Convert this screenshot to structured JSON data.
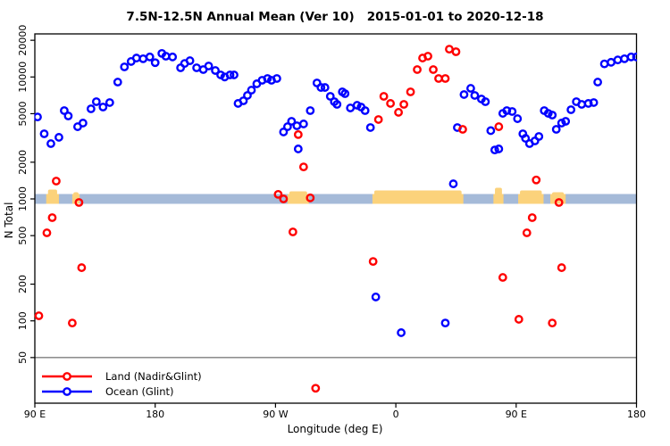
{
  "chart_data": {
    "type": "scatter",
    "title": "7.5N-12.5N Annual Mean (Ver 10)   2015-01-01 to 2020-12-18",
    "xlabel": "Longitude (deg E)",
    "ylabel": "N Total",
    "x_axis": {
      "range_axis_deg": [
        90,
        540
      ],
      "ticks_axis_deg": [
        90,
        180,
        270,
        360,
        450,
        540
      ],
      "tick_labels": [
        "90 E",
        "180",
        "90 W",
        "0",
        "90 E",
        "180"
      ]
    },
    "y_axis": {
      "scale": "log",
      "range": [
        21,
        22600
      ],
      "ticks": [
        50,
        100,
        200,
        500,
        1000,
        2000,
        5000,
        10000,
        20000
      ],
      "tick_labels": [
        "50",
        "100",
        "200",
        "500",
        "1000",
        "2000",
        "5000",
        "10000",
        "20000"
      ]
    },
    "reference_line": {
      "value": 50,
      "color": "#7E7E7E"
    },
    "land_ocean_strip": {
      "center_value": 1000,
      "ocean_color": "#A5BAD8",
      "land_color": "#FBD27B",
      "patches_axis_deg": [
        {
          "from": 98.5,
          "to": 108,
          "bump": 5
        },
        {
          "from": 118,
          "to": 123.5,
          "bump": 2
        },
        {
          "from": 279,
          "to": 295,
          "bump": 3
        },
        {
          "from": 342.5,
          "to": 410.5,
          "bump": 4
        },
        {
          "from": 433,
          "to": 440.5,
          "bump": 7
        },
        {
          "from": 451.5,
          "to": 470.5,
          "bump": 4
        },
        {
          "from": 475.5,
          "to": 487,
          "bump": 2
        }
      ]
    },
    "legend": {
      "position": "bottom-left"
    },
    "series": [
      {
        "name": "Land (Nadir&Glint)",
        "color": "#FF0000",
        "points": [
          [
            93,
            110
          ],
          [
            99,
            527
          ],
          [
            103,
            702
          ],
          [
            106,
            1400
          ],
          [
            118,
            96
          ],
          [
            123,
            935
          ],
          [
            125,
            273
          ],
          [
            272,
            1090
          ],
          [
            276,
            1000
          ],
          [
            283,
            536
          ],
          [
            287,
            3370
          ],
          [
            291,
            1830
          ],
          [
            296,
            1020
          ],
          [
            300,
            28
          ],
          [
            343,
            307
          ],
          [
            347,
            4480
          ],
          [
            351,
            6940
          ],
          [
            356,
            6070
          ],
          [
            362,
            5130
          ],
          [
            366,
            5960
          ],
          [
            371,
            7550
          ],
          [
            376,
            11500
          ],
          [
            380,
            14300
          ],
          [
            384,
            14800
          ],
          [
            388,
            11500
          ],
          [
            392,
            9720
          ],
          [
            397,
            9720
          ],
          [
            400,
            16900
          ],
          [
            405,
            16100
          ],
          [
            410,
            3720
          ],
          [
            437,
            3910
          ],
          [
            440,
            227
          ],
          [
            452,
            103
          ],
          [
            458,
            527
          ],
          [
            462,
            702
          ],
          [
            465,
            1430
          ],
          [
            477,
            96
          ],
          [
            482,
            935
          ],
          [
            484,
            273
          ]
        ]
      },
      {
        "name": "Ocean (Glint)",
        "color": "#0000FF",
        "points": [
          [
            92,
            4700
          ],
          [
            97,
            3420
          ],
          [
            102,
            2840
          ],
          [
            108,
            3200
          ],
          [
            112,
            5300
          ],
          [
            115,
            4790
          ],
          [
            122,
            3910
          ],
          [
            126,
            4190
          ],
          [
            132,
            5480
          ],
          [
            136,
            6270
          ],
          [
            141,
            5670
          ],
          [
            146,
            6170
          ],
          [
            152,
            9080
          ],
          [
            157,
            12100
          ],
          [
            162,
            13400
          ],
          [
            166,
            14300
          ],
          [
            171,
            14100
          ],
          [
            176,
            14600
          ],
          [
            180,
            13100
          ],
          [
            185,
            15600
          ],
          [
            188,
            14800
          ],
          [
            193,
            14600
          ],
          [
            199,
            11900
          ],
          [
            202,
            12900
          ],
          [
            206,
            13600
          ],
          [
            211,
            11900
          ],
          [
            216,
            11500
          ],
          [
            220,
            12300
          ],
          [
            225,
            11300
          ],
          [
            229,
            10400
          ],
          [
            232,
            10000
          ],
          [
            236,
            10400
          ],
          [
            239,
            10400
          ],
          [
            242,
            6070
          ],
          [
            246,
            6380
          ],
          [
            249,
            7060
          ],
          [
            252,
            7800
          ],
          [
            256,
            8790
          ],
          [
            260,
            9400
          ],
          [
            264,
            9720
          ],
          [
            267,
            9400
          ],
          [
            271,
            9720
          ],
          [
            276,
            3540
          ],
          [
            279,
            3910
          ],
          [
            282,
            4330
          ],
          [
            286,
            3980
          ],
          [
            287,
            2570
          ],
          [
            291,
            4120
          ],
          [
            296,
            5300
          ],
          [
            301,
            8930
          ],
          [
            304,
            8200
          ],
          [
            307,
            8200
          ],
          [
            311,
            6940
          ],
          [
            314,
            6270
          ],
          [
            316,
            5960
          ],
          [
            320,
            7550
          ],
          [
            322,
            7300
          ],
          [
            326,
            5570
          ],
          [
            331,
            5860
          ],
          [
            334,
            5670
          ],
          [
            337,
            5300
          ],
          [
            341,
            3850
          ],
          [
            345,
            157
          ],
          [
            364,
            80
          ],
          [
            397,
            96
          ],
          [
            403,
            1330
          ],
          [
            406,
            3850
          ],
          [
            411,
            7180
          ],
          [
            416,
            8070
          ],
          [
            419,
            7060
          ],
          [
            424,
            6600
          ],
          [
            427,
            6270
          ],
          [
            431,
            3630
          ],
          [
            434,
            2520
          ],
          [
            437,
            2570
          ],
          [
            440,
            5030
          ],
          [
            443,
            5300
          ],
          [
            447,
            5210
          ],
          [
            451,
            4550
          ],
          [
            455,
            3420
          ],
          [
            457,
            3140
          ],
          [
            460,
            2840
          ],
          [
            464,
            2990
          ],
          [
            467,
            3250
          ],
          [
            471,
            5300
          ],
          [
            474,
            5030
          ],
          [
            477,
            4870
          ],
          [
            480,
            3720
          ],
          [
            484,
            4190
          ],
          [
            487,
            4330
          ],
          [
            491,
            5390
          ],
          [
            495,
            6270
          ],
          [
            499,
            5960
          ],
          [
            504,
            6070
          ],
          [
            508,
            6170
          ],
          [
            511,
            9080
          ],
          [
            516,
            12800
          ],
          [
            521,
            13200
          ],
          [
            526,
            13800
          ],
          [
            531,
            14100
          ],
          [
            536,
            14600
          ],
          [
            540,
            14600
          ]
        ]
      }
    ]
  }
}
